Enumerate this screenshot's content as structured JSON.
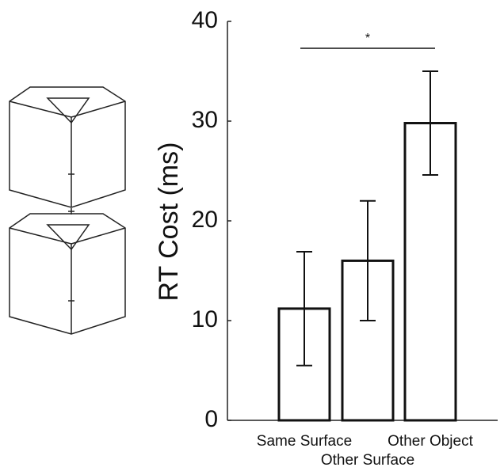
{
  "chart_data": {
    "type": "bar",
    "categories": [
      "Same Surface",
      "Other Surface",
      "Other Object"
    ],
    "values": [
      11.2,
      16.0,
      29.8
    ],
    "errors": [
      5.7,
      6.0,
      5.2
    ],
    "ylabel": "RT Cost (ms)",
    "ylim": [
      0,
      40
    ],
    "yticks": [
      0,
      10,
      20,
      30,
      40
    ],
    "color": "#ffffff",
    "edgecolor": "#111111",
    "significance": {
      "from": 0,
      "to": 2,
      "value": 37.3,
      "label": "*"
    }
  }
}
